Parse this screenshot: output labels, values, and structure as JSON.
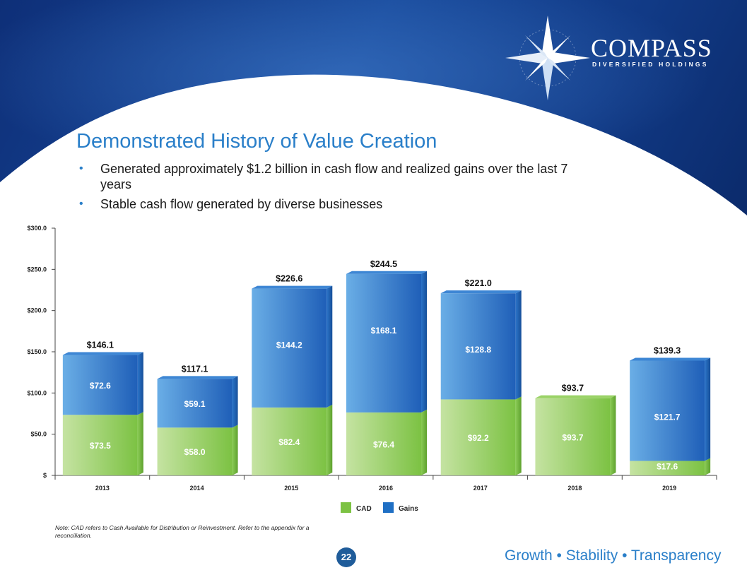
{
  "logo": {
    "name": "COMPASS",
    "subtitle": "DIVERSIFIED HOLDINGS"
  },
  "title": "Demonstrated History of Value Creation",
  "bullets": [
    "Generated approximately $1.2 billion in cash flow and realized gains over the last 7 years",
    "Stable cash flow generated by diverse businesses"
  ],
  "chart_data": {
    "type": "bar",
    "stacked": true,
    "categories": [
      "2013",
      "2014",
      "2015",
      "2016",
      "2017",
      "2018",
      "2019"
    ],
    "series": [
      {
        "name": "CAD",
        "values": [
          73.5,
          58.0,
          82.4,
          76.4,
          92.2,
          93.7,
          17.6
        ],
        "labels": [
          "$73.5",
          "$58.0",
          "$82.4",
          "$76.4",
          "$92.2",
          "$93.7",
          "$17.6"
        ],
        "color": "#7cc243"
      },
      {
        "name": "Gains",
        "values": [
          72.6,
          59.1,
          144.2,
          168.1,
          128.8,
          0,
          121.7
        ],
        "labels": [
          "$72.6",
          "$59.1",
          "$144.2",
          "$168.1",
          "$128.8",
          "",
          "$121.7"
        ],
        "color": "#1f6fc4"
      }
    ],
    "totals": [
      146.1,
      117.1,
      226.6,
      244.5,
      221.0,
      93.7,
      139.3
    ],
    "total_labels": [
      "$146.1",
      "$117.1",
      "$226.6",
      "$244.5",
      "$221.0",
      "$93.7",
      "$139.3"
    ],
    "yticks": [
      0,
      50,
      100,
      150,
      200,
      250,
      300
    ],
    "ytick_labels": [
      "$",
      "$50.0",
      "$100.0",
      "$150.0",
      "$200.0",
      "$250.0",
      "$300.0"
    ],
    "ylim": [
      0,
      300
    ],
    "legend": [
      "CAD",
      "Gains"
    ],
    "legend_position": "bottom-center"
  },
  "note": "Note: CAD refers to Cash Available for Distribution or Reinvestment. Refer to the appendix for a reconciliation.",
  "page_number": "22",
  "tagline": "Growth • Stability • Transparency"
}
